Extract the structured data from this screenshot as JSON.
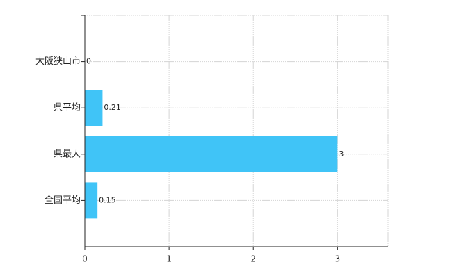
{
  "chart_data": {
    "type": "bar",
    "orientation": "horizontal",
    "categories": [
      "大阪狭山市",
      "県平均",
      "県最大",
      "全国平均"
    ],
    "values": [
      0,
      0.21,
      3,
      0.15
    ],
    "color": "#40c4f7",
    "xlim": [
      0,
      3.6
    ],
    "xticks": [
      0,
      1,
      2,
      3
    ],
    "grid": true
  }
}
